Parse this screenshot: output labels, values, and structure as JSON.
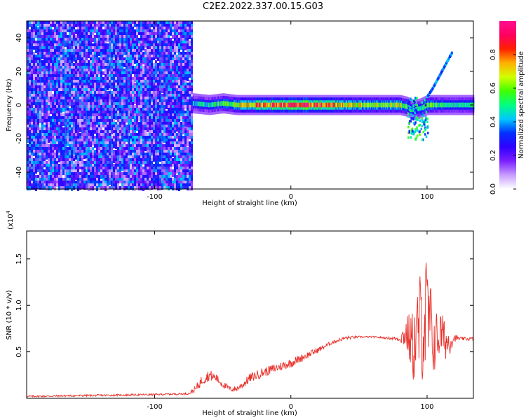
{
  "title": "C2E2.2022.337.00.15.G03",
  "chart_data": [
    {
      "type": "heatmap",
      "xlabel": "Height of straight line (km)",
      "ylabel": "Frequency (Hz)",
      "xlim": [
        -194,
        134
      ],
      "ylim": [
        -50,
        50
      ],
      "x_ticks": [
        -100,
        0,
        100
      ],
      "x_tick_labels": [
        "-100",
        "0",
        "100"
      ],
      "y_ticks": [
        -40,
        -20,
        0,
        20,
        40
      ],
      "y_tick_labels": [
        "-40",
        "-20",
        "0",
        "20",
        "40"
      ],
      "grid": false,
      "colorbar": {
        "label": "Normalized spectral amplitude",
        "range": [
          0,
          1
        ],
        "ticks": [
          0.0,
          0.2,
          0.4,
          0.6,
          0.8
        ],
        "tick_labels": [
          "0.0",
          "0.2",
          "0.4",
          "0.6",
          "0.8"
        ],
        "colors": [
          "#ffffff",
          "#c89cff",
          "#7b20ff",
          "#3000ff",
          "#0030ff",
          "#00c8ff",
          "#00ff80",
          "#40ff00",
          "#d0ff00",
          "#ffb000",
          "#ff2000",
          "#ff0060",
          "#ff1090"
        ]
      },
      "features": {
        "noise_region_x": [
          -194,
          -73
        ],
        "noise_amplitude": 0.35,
        "signal_line": {
          "x": [
            -72,
            -60,
            -50,
            -40,
            -20,
            0,
            10,
            20,
            30,
            50,
            70,
            80,
            85,
            90,
            95,
            100,
            110,
            120,
            134
          ],
          "y": [
            1,
            0,
            1,
            0,
            0,
            0,
            0,
            0,
            0,
            0,
            0,
            0,
            -1,
            -3,
            -2,
            0,
            0,
            0,
            0
          ],
          "amplitude": [
            0.45,
            0.5,
            0.55,
            0.7,
            0.85,
            0.9,
            0.9,
            0.85,
            0.8,
            0.7,
            0.65,
            0.7,
            0.55,
            0.45,
            0.5,
            0.6,
            0.55,
            0.5,
            0.5
          ]
        },
        "scatter_burst_x": [
          85,
          100
        ],
        "scatter_burst_y": [
          -20,
          5
        ],
        "rising_trace": {
          "x": [
            100,
            104,
            108,
            112,
            116,
            118
          ],
          "y": [
            5,
            10,
            16,
            22,
            28,
            31
          ]
        }
      }
    },
    {
      "type": "line",
      "xlabel": "Height of straight line (km)",
      "ylabel": "SNR (10 * v/v)",
      "y_scale_label": "(x10",
      "y_scale_exponent": "4",
      "y_scale": 10000,
      "xlim": [
        -194,
        134
      ],
      "ylim": [
        0,
        1.8
      ],
      "x_ticks": [
        -100,
        0,
        100
      ],
      "x_tick_labels": [
        "-100",
        "0",
        "100"
      ],
      "y_ticks": [
        0.5,
        1.0,
        1.5
      ],
      "y_tick_labels": [
        "0.5",
        "1.0",
        "1.5"
      ],
      "grid": false,
      "series": [
        {
          "color": "#e8302a",
          "x": [
            -194,
            -150,
            -100,
            -75,
            -70,
            -65,
            -60,
            -55,
            -50,
            -45,
            -40,
            -35,
            -30,
            -20,
            -10,
            0,
            10,
            20,
            30,
            40,
            50,
            60,
            70,
            80,
            85,
            90,
            95,
            100,
            105,
            110,
            115,
            120,
            125,
            134
          ],
          "y": [
            0.02,
            0.03,
            0.04,
            0.05,
            0.1,
            0.2,
            0.25,
            0.22,
            0.15,
            0.1,
            0.1,
            0.15,
            0.22,
            0.28,
            0.33,
            0.38,
            0.45,
            0.52,
            0.6,
            0.65,
            0.66,
            0.66,
            0.65,
            0.64,
            0.7,
            0.55,
            0.8,
            0.85,
            0.6,
            0.7,
            0.6,
            0.65,
            0.64,
            0.64
          ],
          "noise": [
            0.01,
            0.01,
            0.01,
            0.01,
            0.04,
            0.06,
            0.06,
            0.05,
            0.04,
            0.03,
            0.03,
            0.04,
            0.05,
            0.05,
            0.05,
            0.05,
            0.04,
            0.03,
            0.02,
            0.02,
            0.01,
            0.01,
            0.01,
            0.03,
            0.2,
            0.4,
            0.6,
            0.75,
            0.35,
            0.25,
            0.2,
            0.04,
            0.02,
            0.02
          ]
        }
      ]
    }
  ]
}
